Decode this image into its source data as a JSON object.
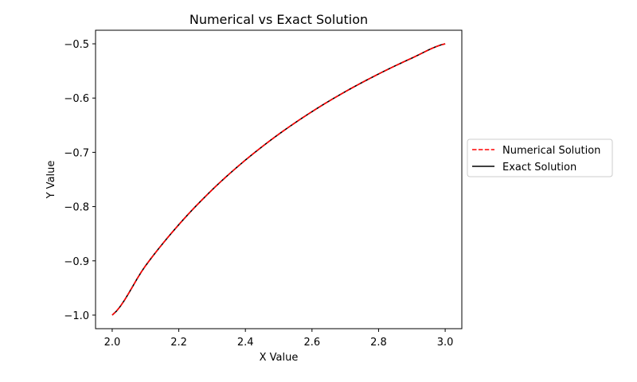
{
  "chart_data": {
    "type": "line",
    "title": "Numerical vs Exact Solution",
    "xlabel": "X Value",
    "ylabel": "Y Value",
    "xlim": [
      1.95,
      3.05
    ],
    "ylim": [
      -1.025,
      -0.475
    ],
    "xticks": [
      2.0,
      2.2,
      2.4,
      2.6,
      2.8,
      3.0
    ],
    "xtick_labels": [
      "2.0",
      "2.2",
      "2.4",
      "2.6",
      "2.8",
      "3.0"
    ],
    "yticks": [
      -1.0,
      -0.9,
      -0.8,
      -0.7,
      -0.6,
      -0.5
    ],
    "ytick_labels": [
      "−1.0",
      "−0.9",
      "−0.8",
      "−0.7",
      "−0.6",
      "−0.5"
    ],
    "grid": false,
    "legend_position": "right, outside plot",
    "x": [
      2.0,
      2.1,
      2.2,
      2.3,
      2.4,
      2.5,
      2.6,
      2.7,
      2.8,
      2.9,
      3.0
    ],
    "series": [
      {
        "name": "Numerical Solution",
        "color": "#ff0000",
        "style": "dashed",
        "values": [
          -1.0,
          -0.9091,
          -0.8333,
          -0.7692,
          -0.7143,
          -0.6667,
          -0.625,
          -0.5882,
          -0.5556,
          -0.5263,
          -0.5
        ]
      },
      {
        "name": "Exact Solution",
        "color": "#000000",
        "style": "solid",
        "values": [
          -1.0,
          -0.9091,
          -0.8333,
          -0.7692,
          -0.7143,
          -0.6667,
          -0.625,
          -0.5882,
          -0.5556,
          -0.5263,
          -0.5
        ]
      }
    ]
  }
}
